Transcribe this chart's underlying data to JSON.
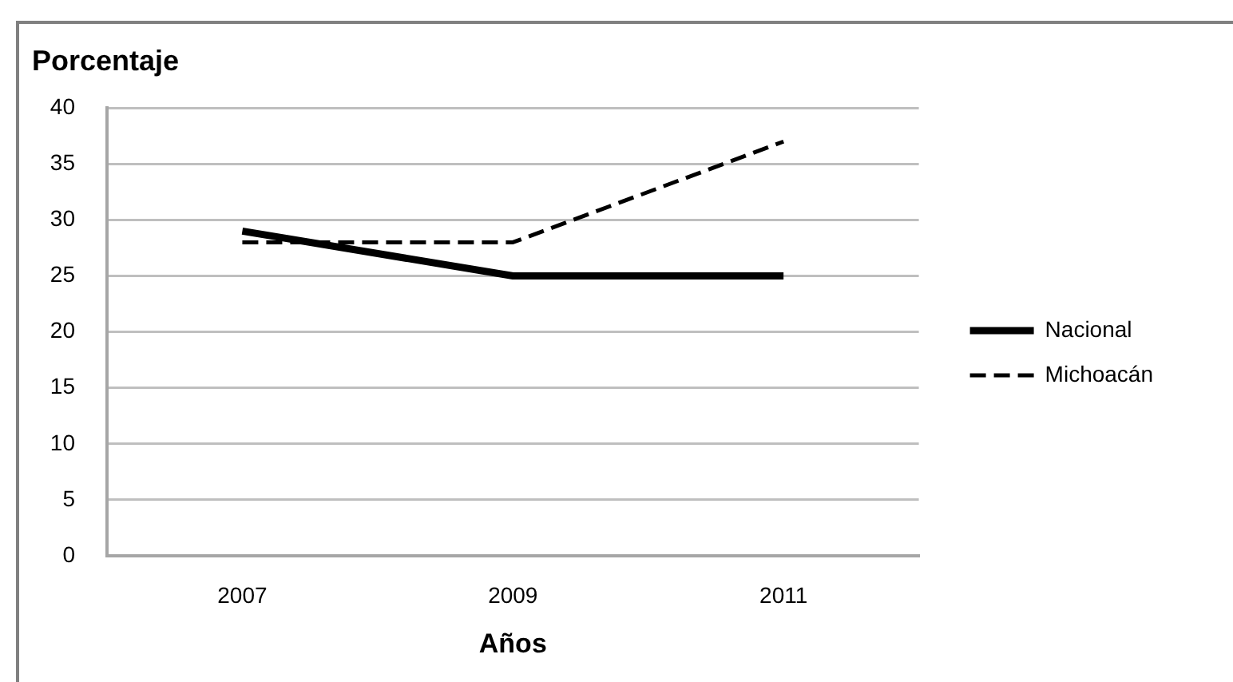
{
  "chart_data": {
    "type": "line",
    "ylabel": "Porcentaje",
    "xlabel": "Años",
    "categories": [
      "2007",
      "2009",
      "2011"
    ],
    "series": [
      {
        "name": "Nacional",
        "color": "#000000",
        "line_style": "solid",
        "values": [
          29,
          25,
          25
        ]
      },
      {
        "name": "Michoacán",
        "color": "#000000",
        "line_style": "dashed",
        "values": [
          28,
          28,
          37
        ]
      }
    ],
    "ylim": [
      0,
      40
    ],
    "yticks": [
      0,
      5,
      10,
      15,
      20,
      25,
      30,
      35,
      40
    ],
    "grid": "y",
    "legend": "right",
    "marker": "none"
  }
}
